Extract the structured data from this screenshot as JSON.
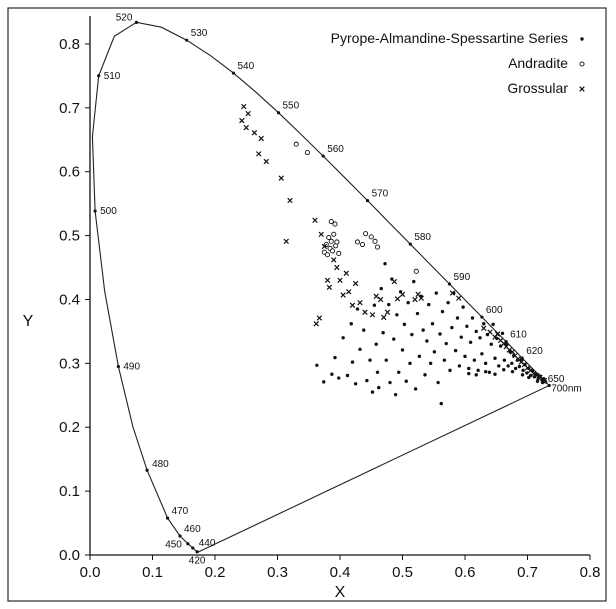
{
  "chart_data": {
    "type": "scatter",
    "title": "",
    "xlabel": "X",
    "ylabel": "Y",
    "xlim": [
      0.0,
      0.8
    ],
    "ylim": [
      0.0,
      0.85
    ],
    "x_ticks": [
      "0.0",
      "0.1",
      "0.2",
      "0.3",
      "0.4",
      "0.5",
      "0.6",
      "0.7",
      "0.8"
    ],
    "y_ticks": [
      "0.0",
      "0.1",
      "0.2",
      "0.3",
      "0.4",
      "0.5",
      "0.6",
      "0.7",
      "0.8"
    ],
    "grid": false,
    "legend_position": "top-right",
    "spectral_locus": [
      [
        0.1741,
        0.005
      ],
      [
        0.1738,
        0.0049
      ],
      [
        0.1733,
        0.0048
      ],
      [
        0.1726,
        0.0048
      ],
      [
        0.1714,
        0.0051
      ],
      [
        0.1689,
        0.0069
      ],
      [
        0.1644,
        0.0109
      ],
      [
        0.1566,
        0.0177
      ],
      [
        0.144,
        0.0297
      ],
      [
        0.1241,
        0.0578
      ],
      [
        0.0913,
        0.1327
      ],
      [
        0.0687,
        0.2007
      ],
      [
        0.0454,
        0.295
      ],
      [
        0.0235,
        0.4127
      ],
      [
        0.0082,
        0.5384
      ],
      [
        0.0039,
        0.6548
      ],
      [
        0.0139,
        0.7502
      ],
      [
        0.0389,
        0.812
      ],
      [
        0.0743,
        0.8338
      ],
      [
        0.1142,
        0.8262
      ],
      [
        0.1547,
        0.8059
      ],
      [
        0.1929,
        0.7816
      ],
      [
        0.2296,
        0.7543
      ],
      [
        0.2658,
        0.7243
      ],
      [
        0.3016,
        0.6923
      ],
      [
        0.3373,
        0.6589
      ],
      [
        0.3731,
        0.6245
      ],
      [
        0.4087,
        0.5896
      ],
      [
        0.4441,
        0.5547
      ],
      [
        0.4788,
        0.5202
      ],
      [
        0.5125,
        0.4866
      ],
      [
        0.5448,
        0.4544
      ],
      [
        0.5752,
        0.4242
      ],
      [
        0.6029,
        0.3965
      ],
      [
        0.627,
        0.3725
      ],
      [
        0.6482,
        0.3514
      ],
      [
        0.6658,
        0.334
      ],
      [
        0.6801,
        0.3197
      ],
      [
        0.6915,
        0.3083
      ],
      [
        0.7006,
        0.2993
      ],
      [
        0.7079,
        0.292
      ],
      [
        0.714,
        0.2859
      ],
      [
        0.719,
        0.2809
      ],
      [
        0.723,
        0.277
      ],
      [
        0.726,
        0.274
      ],
      [
        0.7283,
        0.2717
      ],
      [
        0.73,
        0.27
      ],
      [
        0.7347,
        0.2653
      ]
    ],
    "wavelength_labels": [
      {
        "text": "420",
        "x": 0.1714,
        "y": 0.0051
      },
      {
        "text": "440",
        "x": 0.1644,
        "y": 0.0109
      },
      {
        "text": "450",
        "x": 0.1566,
        "y": 0.0177
      },
      {
        "text": "460",
        "x": 0.144,
        "y": 0.0297
      },
      {
        "text": "470",
        "x": 0.1241,
        "y": 0.0578
      },
      {
        "text": "480",
        "x": 0.0913,
        "y": 0.1327
      },
      {
        "text": "490",
        "x": 0.0454,
        "y": 0.295
      },
      {
        "text": "500",
        "x": 0.0082,
        "y": 0.5384
      },
      {
        "text": "510",
        "x": 0.0139,
        "y": 0.7502
      },
      {
        "text": "520",
        "x": 0.0743,
        "y": 0.8338
      },
      {
        "text": "530",
        "x": 0.1547,
        "y": 0.8059
      },
      {
        "text": "540",
        "x": 0.2296,
        "y": 0.7543
      },
      {
        "text": "550",
        "x": 0.3016,
        "y": 0.6923
      },
      {
        "text": "560",
        "x": 0.3731,
        "y": 0.6245
      },
      {
        "text": "570",
        "x": 0.4441,
        "y": 0.5547
      },
      {
        "text": "580",
        "x": 0.5125,
        "y": 0.4866
      },
      {
        "text": "590",
        "x": 0.5752,
        "y": 0.4242
      },
      {
        "text": "600",
        "x": 0.627,
        "y": 0.3725
      },
      {
        "text": "610",
        "x": 0.6658,
        "y": 0.334
      },
      {
        "text": "620",
        "x": 0.6915,
        "y": 0.3083
      },
      {
        "text": "650",
        "x": 0.726,
        "y": 0.274
      },
      {
        "text": "700nm",
        "x": 0.7347,
        "y": 0.2653
      }
    ],
    "series": [
      {
        "name": "Pyrope-Almandine-Spessartine Series",
        "marker": "filled-circle",
        "color": "#111111",
        "points": [
          [
            0.363,
            0.297
          ],
          [
            0.374,
            0.271
          ],
          [
            0.387,
            0.283
          ],
          [
            0.392,
            0.309
          ],
          [
            0.398,
            0.277
          ],
          [
            0.405,
            0.34
          ],
          [
            0.412,
            0.281
          ],
          [
            0.418,
            0.362
          ],
          [
            0.42,
            0.302
          ],
          [
            0.425,
            0.268
          ],
          [
            0.428,
            0.385
          ],
          [
            0.432,
            0.322
          ],
          [
            0.438,
            0.352
          ],
          [
            0.443,
            0.273
          ],
          [
            0.448,
            0.305
          ],
          [
            0.452,
            0.255
          ],
          [
            0.455,
            0.391
          ],
          [
            0.458,
            0.33
          ],
          [
            0.46,
            0.286
          ],
          [
            0.462,
            0.262
          ],
          [
            0.466,
            0.417
          ],
          [
            0.469,
            0.348
          ],
          [
            0.472,
            0.456
          ],
          [
            0.474,
            0.305
          ],
          [
            0.478,
            0.392
          ],
          [
            0.48,
            0.27
          ],
          [
            0.483,
            0.432
          ],
          [
            0.486,
            0.338
          ],
          [
            0.489,
            0.251
          ],
          [
            0.491,
            0.376
          ],
          [
            0.494,
            0.286
          ],
          [
            0.497,
            0.412
          ],
          [
            0.5,
            0.321
          ],
          [
            0.503,
            0.361
          ],
          [
            0.506,
            0.272
          ],
          [
            0.509,
            0.395
          ],
          [
            0.512,
            0.3
          ],
          [
            0.515,
            0.345
          ],
          [
            0.518,
            0.428
          ],
          [
            0.521,
            0.26
          ],
          [
            0.524,
            0.378
          ],
          [
            0.527,
            0.311
          ],
          [
            0.53,
            0.405
          ],
          [
            0.533,
            0.352
          ],
          [
            0.536,
            0.282
          ],
          [
            0.539,
            0.335
          ],
          [
            0.542,
            0.392
          ],
          [
            0.545,
            0.3
          ],
          [
            0.548,
            0.362
          ],
          [
            0.551,
            0.318
          ],
          [
            0.554,
            0.41
          ],
          [
            0.557,
            0.27
          ],
          [
            0.56,
            0.346
          ],
          [
            0.562,
            0.237
          ],
          [
            0.564,
            0.381
          ],
          [
            0.567,
            0.305
          ],
          [
            0.57,
            0.331
          ],
          [
            0.573,
            0.395
          ],
          [
            0.576,
            0.289
          ],
          [
            0.579,
            0.356
          ],
          [
            0.582,
            0.41
          ],
          [
            0.585,
            0.32
          ],
          [
            0.588,
            0.371
          ],
          [
            0.591,
            0.296
          ],
          [
            0.594,
            0.341
          ],
          [
            0.597,
            0.388
          ],
          [
            0.6,
            0.311
          ],
          [
            0.603,
            0.358
          ],
          [
            0.606,
            0.292
          ],
          [
            0.609,
            0.333
          ],
          [
            0.612,
            0.371
          ],
          [
            0.615,
            0.305
          ],
          [
            0.618,
            0.35
          ],
          [
            0.621,
            0.289
          ],
          [
            0.624,
            0.34
          ],
          [
            0.627,
            0.315
          ],
          [
            0.63,
            0.362
          ],
          [
            0.633,
            0.3
          ],
          [
            0.636,
            0.345
          ],
          [
            0.639,
            0.286
          ],
          [
            0.642,
            0.33
          ],
          [
            0.645,
            0.361
          ],
          [
            0.648,
            0.308
          ],
          [
            0.651,
            0.339
          ],
          [
            0.654,
            0.296
          ],
          [
            0.657,
            0.327
          ],
          [
            0.66,
            0.347
          ],
          [
            0.663,
            0.305
          ],
          [
            0.666,
            0.33
          ],
          [
            0.669,
            0.296
          ],
          [
            0.672,
            0.318
          ],
          [
            0.675,
            0.3
          ],
          [
            0.678,
            0.312
          ],
          [
            0.681,
            0.292
          ],
          [
            0.684,
            0.305
          ],
          [
            0.687,
            0.295
          ],
          [
            0.69,
            0.306
          ],
          [
            0.693,
            0.289
          ],
          [
            0.696,
            0.298
          ],
          [
            0.699,
            0.285
          ],
          [
            0.702,
            0.292
          ],
          [
            0.705,
            0.281
          ],
          [
            0.708,
            0.288
          ],
          [
            0.711,
            0.279
          ],
          [
            0.714,
            0.283
          ],
          [
            0.717,
            0.276
          ],
          [
            0.72,
            0.28
          ],
          [
            0.723,
            0.274
          ],
          [
            0.726,
            0.276
          ],
          [
            0.729,
            0.271
          ],
          [
            0.606,
            0.284
          ],
          [
            0.618,
            0.282
          ],
          [
            0.633,
            0.287
          ],
          [
            0.648,
            0.283
          ],
          [
            0.662,
            0.29
          ],
          [
            0.676,
            0.287
          ],
          [
            0.692,
            0.282
          ],
          [
            0.702,
            0.278
          ],
          [
            0.716,
            0.272
          ],
          [
            0.724,
            0.27
          ]
        ]
      },
      {
        "name": "Andradite",
        "marker": "open-circle",
        "color": "#111111",
        "points": [
          [
            0.33,
            0.643
          ],
          [
            0.348,
            0.63
          ],
          [
            0.375,
            0.474
          ],
          [
            0.378,
            0.486
          ],
          [
            0.38,
            0.47
          ],
          [
            0.382,
            0.497
          ],
          [
            0.384,
            0.48
          ],
          [
            0.386,
            0.491
          ],
          [
            0.388,
            0.476
          ],
          [
            0.39,
            0.502
          ],
          [
            0.386,
            0.522
          ],
          [
            0.392,
            0.518
          ],
          [
            0.393,
            0.484
          ],
          [
            0.395,
            0.49
          ],
          [
            0.398,
            0.472
          ],
          [
            0.428,
            0.49
          ],
          [
            0.436,
            0.486
          ],
          [
            0.441,
            0.503
          ],
          [
            0.45,
            0.498
          ],
          [
            0.456,
            0.491
          ],
          [
            0.46,
            0.482
          ],
          [
            0.522,
            0.444
          ]
        ]
      },
      {
        "name": "Grossular",
        "marker": "cross",
        "color": "#111111",
        "points": [
          [
            0.243,
            0.68
          ],
          [
            0.246,
            0.702
          ],
          [
            0.25,
            0.669
          ],
          [
            0.253,
            0.691
          ],
          [
            0.263,
            0.661
          ],
          [
            0.27,
            0.628
          ],
          [
            0.274,
            0.652
          ],
          [
            0.282,
            0.616
          ],
          [
            0.306,
            0.59
          ],
          [
            0.32,
            0.555
          ],
          [
            0.314,
            0.491
          ],
          [
            0.36,
            0.524
          ],
          [
            0.367,
            0.371
          ],
          [
            0.362,
            0.362
          ],
          [
            0.37,
            0.502
          ],
          [
            0.375,
            0.483
          ],
          [
            0.38,
            0.43
          ],
          [
            0.383,
            0.419
          ],
          [
            0.39,
            0.462
          ],
          [
            0.395,
            0.45
          ],
          [
            0.4,
            0.43
          ],
          [
            0.405,
            0.407
          ],
          [
            0.41,
            0.441
          ],
          [
            0.414,
            0.412
          ],
          [
            0.42,
            0.391
          ],
          [
            0.425,
            0.425
          ],
          [
            0.432,
            0.395
          ],
          [
            0.44,
            0.38
          ],
          [
            0.452,
            0.376
          ],
          [
            0.458,
            0.405
          ],
          [
            0.465,
            0.4
          ],
          [
            0.47,
            0.372
          ],
          [
            0.476,
            0.38
          ],
          [
            0.487,
            0.428
          ],
          [
            0.492,
            0.401
          ],
          [
            0.5,
            0.408
          ],
          [
            0.52,
            0.4
          ],
          [
            0.525,
            0.408
          ],
          [
            0.53,
            0.402
          ],
          [
            0.58,
            0.41
          ],
          [
            0.59,
            0.402
          ],
          [
            0.63,
            0.355
          ],
          [
            0.64,
            0.349
          ],
          [
            0.648,
            0.341
          ],
          [
            0.652,
            0.346
          ],
          [
            0.657,
            0.336
          ],
          [
            0.662,
            0.331
          ],
          [
            0.666,
            0.326
          ],
          [
            0.671,
            0.321
          ],
          [
            0.676,
            0.318
          ],
          [
            0.68,
            0.312
          ],
          [
            0.685,
            0.307
          ],
          [
            0.69,
            0.302
          ],
          [
            0.695,
            0.298
          ],
          [
            0.7,
            0.293
          ],
          [
            0.705,
            0.289
          ],
          [
            0.71,
            0.284
          ],
          [
            0.715,
            0.281
          ],
          [
            0.72,
            0.278
          ],
          [
            0.727,
            0.273
          ]
        ]
      }
    ]
  }
}
